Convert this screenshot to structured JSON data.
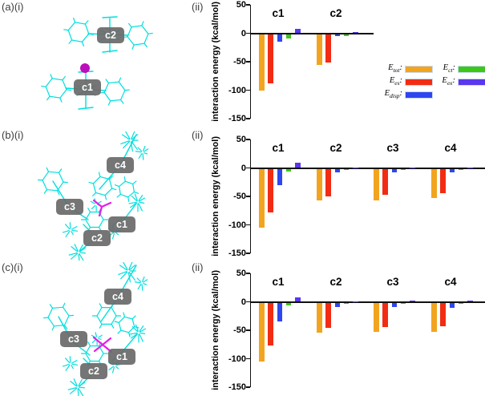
{
  "figure": {
    "rows": [
      {
        "panel_label": "(a)(i)",
        "chart_label": "(ii)",
        "molecule_labels": [
          "c2",
          "c1"
        ]
      },
      {
        "panel_label": "(b)(i)",
        "chart_label": "(ii)",
        "molecule_labels": [
          "c4",
          "c3",
          "c1",
          "c2"
        ]
      },
      {
        "panel_label": "(c)(i)",
        "chart_label": "(ii)",
        "molecule_labels": [
          "c4",
          "c3",
          "c1",
          "c2"
        ]
      }
    ]
  },
  "axis": {
    "ylabel": "interaction energy (kcal/mol)",
    "yticks": [
      50,
      0,
      -50,
      -100,
      -150
    ],
    "ylim": [
      -150,
      50
    ]
  },
  "legend": {
    "items": [
      {
        "prefix": "E",
        "sub": "tot",
        "suffix": ":",
        "color": "#F2A41F"
      },
      {
        "prefix": "E",
        "sub": "es",
        "suffix": ":",
        "color": "#F22C13"
      },
      {
        "prefix": "E",
        "sub": "disp",
        "suffix": ":",
        "color": "#2E46F0"
      },
      {
        "prefix": "E",
        "sub": "ct",
        "suffix": ":",
        "color": "#3DC71B"
      },
      {
        "prefix": "E",
        "sub": "ex",
        "suffix": ":",
        "color": "#5A36EE"
      }
    ]
  },
  "colors": {
    "molecule": "#00DFDF",
    "heteroatom": "#BB0FBB",
    "magenta_bonds": "#E81BE8",
    "label_box": "#6a6a6a",
    "axis": "#111111"
  },
  "chart_data": [
    {
      "type": "bar",
      "title": "",
      "xlabel": "",
      "ylabel": "interaction energy (kcal/mol)",
      "ylim": [
        -150,
        50
      ],
      "grid": false,
      "legend_position": "right-below-axis",
      "categories": [
        "c1",
        "c2"
      ],
      "series": [
        {
          "name": "E_tot",
          "color": "#F2A41F",
          "values": [
            -99,
            -54
          ]
        },
        {
          "name": "E_es",
          "color": "#F22C13",
          "values": [
            -86,
            -50
          ]
        },
        {
          "name": "E_disp",
          "color": "#2E46F0",
          "values": [
            -14,
            -4
          ]
        },
        {
          "name": "E_ct",
          "color": "#3DC71B",
          "values": [
            -8,
            -3
          ]
        },
        {
          "name": "E_ex",
          "color": "#5A36EE",
          "values": [
            8,
            2
          ]
        }
      ]
    },
    {
      "type": "bar",
      "title": "",
      "xlabel": "",
      "ylabel": "interaction energy (kcal/mol)",
      "ylim": [
        -150,
        50
      ],
      "grid": false,
      "categories": [
        "c1",
        "c2",
        "c3",
        "c4"
      ],
      "series": [
        {
          "name": "E_tot",
          "color": "#F2A41F",
          "values": [
            -104,
            -56,
            -55,
            -51
          ]
        },
        {
          "name": "E_es",
          "color": "#F22C13",
          "values": [
            -77,
            -48,
            -46,
            -43
          ]
        },
        {
          "name": "E_disp",
          "color": "#2E46F0",
          "values": [
            -29,
            -7,
            -7,
            -7
          ]
        },
        {
          "name": "E_ct",
          "color": "#3DC71B",
          "values": [
            -5,
            -2,
            -1,
            -1
          ]
        },
        {
          "name": "E_ex",
          "color": "#5A36EE",
          "values": [
            9,
            1,
            1,
            1
          ]
        }
      ]
    },
    {
      "type": "bar",
      "title": "",
      "xlabel": "",
      "ylabel": "interaction energy (kcal/mol)",
      "ylim": [
        -150,
        50
      ],
      "grid": false,
      "categories": [
        "c1",
        "c2",
        "c3",
        "c4"
      ],
      "series": [
        {
          "name": "E_tot",
          "color": "#F2A41F",
          "values": [
            -104,
            -53,
            -52,
            -52
          ]
        },
        {
          "name": "E_es",
          "color": "#F22C13",
          "values": [
            -75,
            -45,
            -43,
            -42
          ]
        },
        {
          "name": "E_disp",
          "color": "#2E46F0",
          "values": [
            -33,
            -8,
            -8,
            -9
          ]
        },
        {
          "name": "E_ct",
          "color": "#3DC71B",
          "values": [
            -5,
            -1,
            -1,
            -1
          ]
        },
        {
          "name": "E_ex",
          "color": "#5A36EE",
          "values": [
            8,
            1,
            2,
            2
          ]
        }
      ]
    }
  ]
}
